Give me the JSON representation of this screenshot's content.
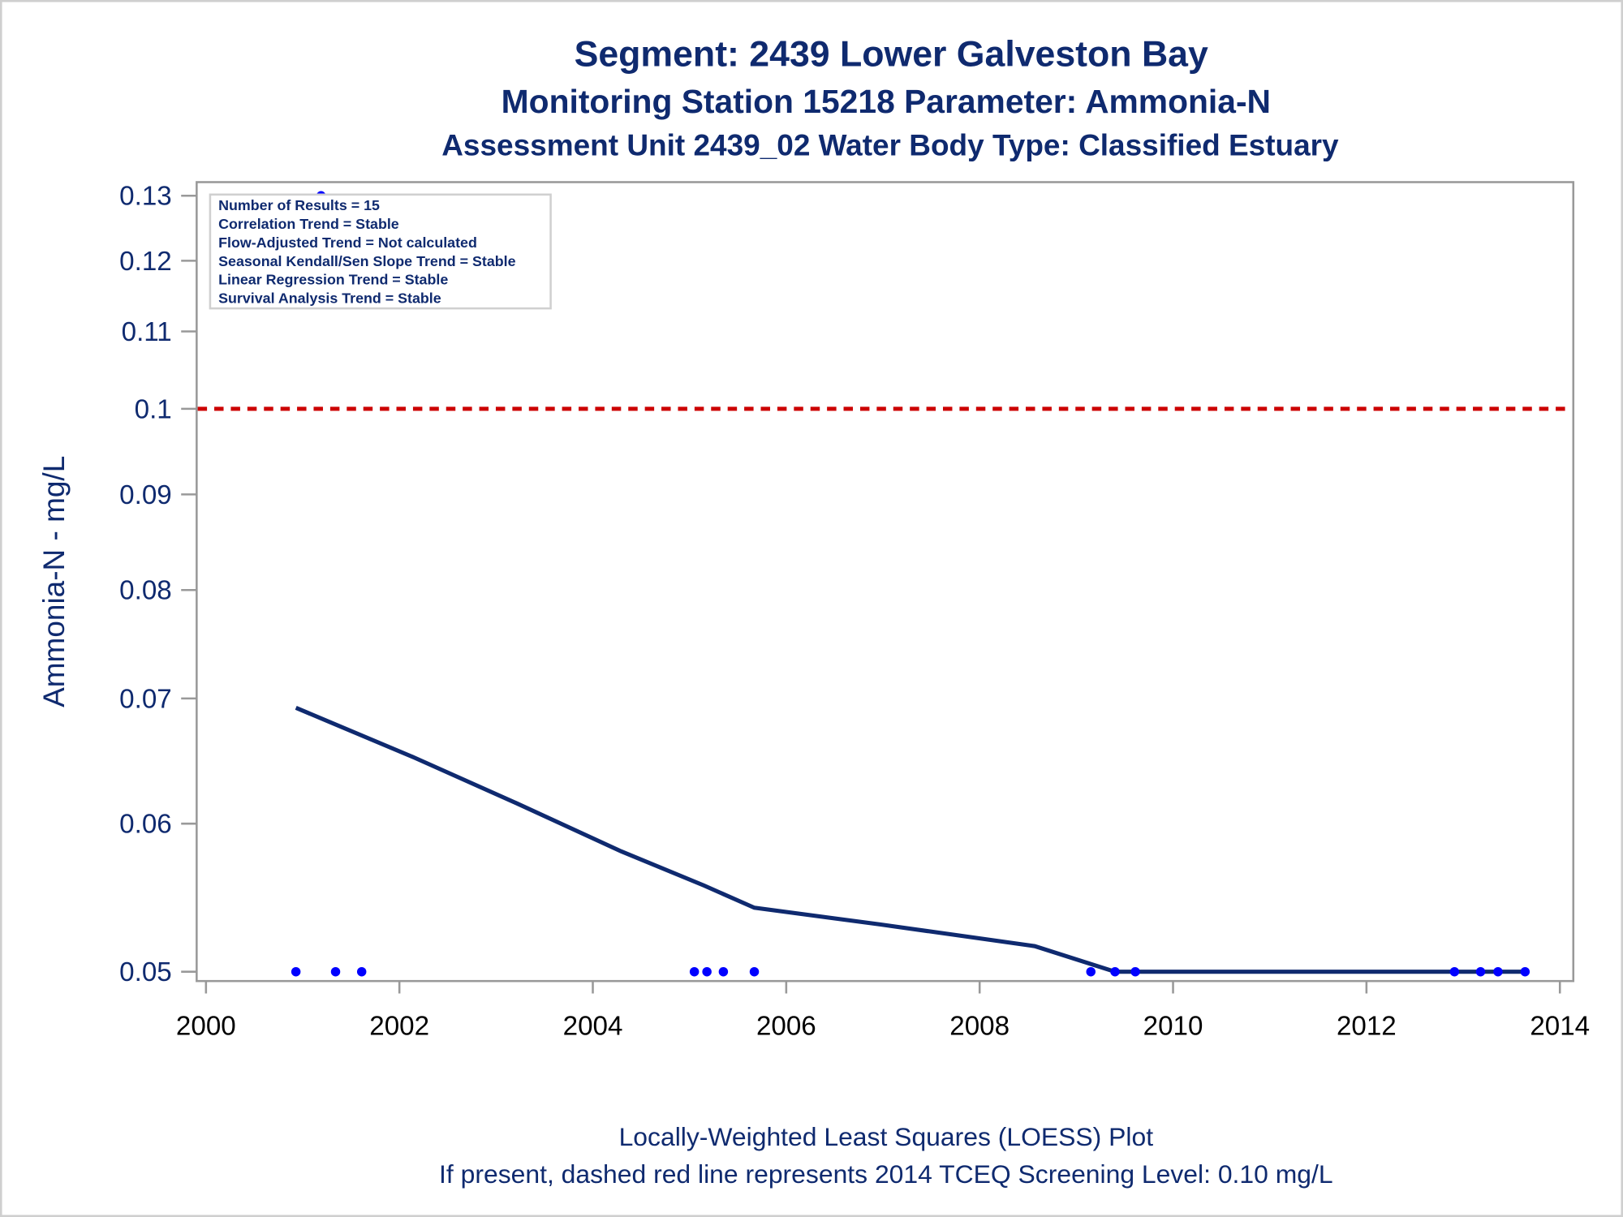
{
  "chart_data": {
    "type": "scatter",
    "title": "Segment: 2439  Lower Galveston Bay",
    "subtitle1": "Monitoring Station 15218 Parameter: Ammonia-N",
    "subtitle2": "Assessment Unit 2439_02   Water Body Type: Classified Estuary",
    "ylabel": "Ammonia-N - mg/L",
    "xlabel": "",
    "yscale": "log",
    "ylim": [
      0.0488,
      0.132
    ],
    "xlim": [
      1999.9,
      2014.15
    ],
    "yticks": [
      0.05,
      0.06,
      0.07,
      0.08,
      0.09,
      0.1,
      0.11,
      0.12,
      0.13
    ],
    "ytick_labels": [
      "0.05",
      "0.06",
      "0.07",
      "0.08",
      "0.09",
      "0.1",
      "0.11",
      "0.12",
      "0.13"
    ],
    "xticks": [
      2000,
      2002,
      2004,
      2006,
      2008,
      2010,
      2012,
      2014
    ],
    "xtick_labels": [
      "2000",
      "2002",
      "2004",
      "2006",
      "2008",
      "2010",
      "2012",
      "2014"
    ],
    "grid": false,
    "points": {
      "x": [
        2000.93,
        2001.19,
        2001.34,
        2001.61,
        2005.05,
        2005.18,
        2005.35,
        2005.67,
        2009.15,
        2009.4,
        2009.61,
        2012.91,
        2013.18,
        2013.36,
        2013.64
      ],
      "y": [
        0.05,
        0.13,
        0.05,
        0.05,
        0.05,
        0.05,
        0.05,
        0.05,
        0.05,
        0.05,
        0.05,
        0.05,
        0.05,
        0.05,
        0.05
      ]
    },
    "loess": {
      "x": [
        2000.93,
        2002.15,
        2003.22,
        2004.29,
        2005.15,
        2005.67,
        2006.97,
        2008.57,
        2009.4,
        2013.64
      ],
      "y": [
        0.0692,
        0.0651,
        0.0615,
        0.058,
        0.0556,
        0.0541,
        0.053,
        0.0516,
        0.05,
        0.05
      ]
    },
    "reference_line": {
      "y": 0.1,
      "style": "dashed",
      "color": "#cc0000"
    },
    "stats_box": {
      "placement": "top-left",
      "lines": [
        "Number of Results = 15",
        "Correlation Trend = Stable",
        "Flow-Adjusted Trend = Not calculated",
        "Seasonal Kendall/Sen Slope Trend = Stable",
        "Linear Regression Trend = Stable",
        "Survival Analysis Trend = Stable"
      ]
    },
    "footnotes": [
      "Locally-Weighted Least Squares (LOESS) Plot",
      "If present, dashed red line represents 2014 TCEQ Screening Level: 0.10 mg/L"
    ],
    "colors": {
      "text": "#0f2a6f",
      "points": "#0000ff",
      "line": "#0f2a6f",
      "reference": "#cc0000",
      "axis": "#999999"
    }
  }
}
